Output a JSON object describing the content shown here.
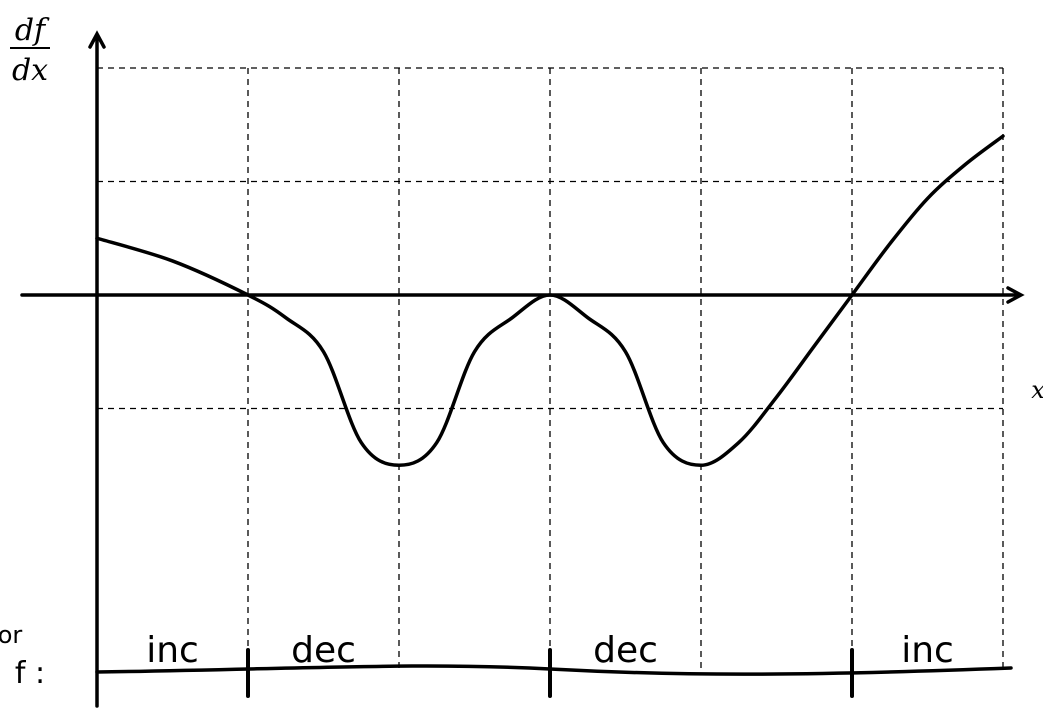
{
  "chart_data": {
    "type": "line",
    "ylabel_num": "df",
    "ylabel_den": "dx",
    "xlabel": "x",
    "grid": true,
    "xlim": [
      0,
      6
    ],
    "ylim": [
      -2,
      2
    ],
    "series": [
      {
        "x": [
          0,
          0.5,
          1,
          1.25,
          1.5,
          1.75,
          2,
          2.25,
          2.5,
          2.75,
          3,
          3.25,
          3.5,
          3.75,
          4,
          4.25,
          4.5,
          4.75,
          5,
          5.25,
          5.5,
          5.75,
          6
        ],
        "y": [
          0.5,
          0.3,
          0,
          -0.2,
          -0.5,
          -1.3,
          -1.5,
          -1.3,
          -0.5,
          -0.2,
          0,
          -0.2,
          -0.5,
          -1.3,
          -1.5,
          -1.3,
          -0.9,
          -0.45,
          0,
          0.45,
          0.85,
          1.15,
          1.4
        ]
      }
    ]
  },
  "sign_line": {
    "prefix_top": "or",
    "prefix_bottom": "f :",
    "segments": [
      {
        "label": "inc",
        "x_center": 0.5
      },
      {
        "label": "dec",
        "x_center": 1.5
      },
      {
        "label": "dec",
        "x_center": 3.5
      },
      {
        "label": "inc",
        "x_center": 5.5
      }
    ],
    "tick_x": [
      1,
      3,
      5
    ]
  }
}
